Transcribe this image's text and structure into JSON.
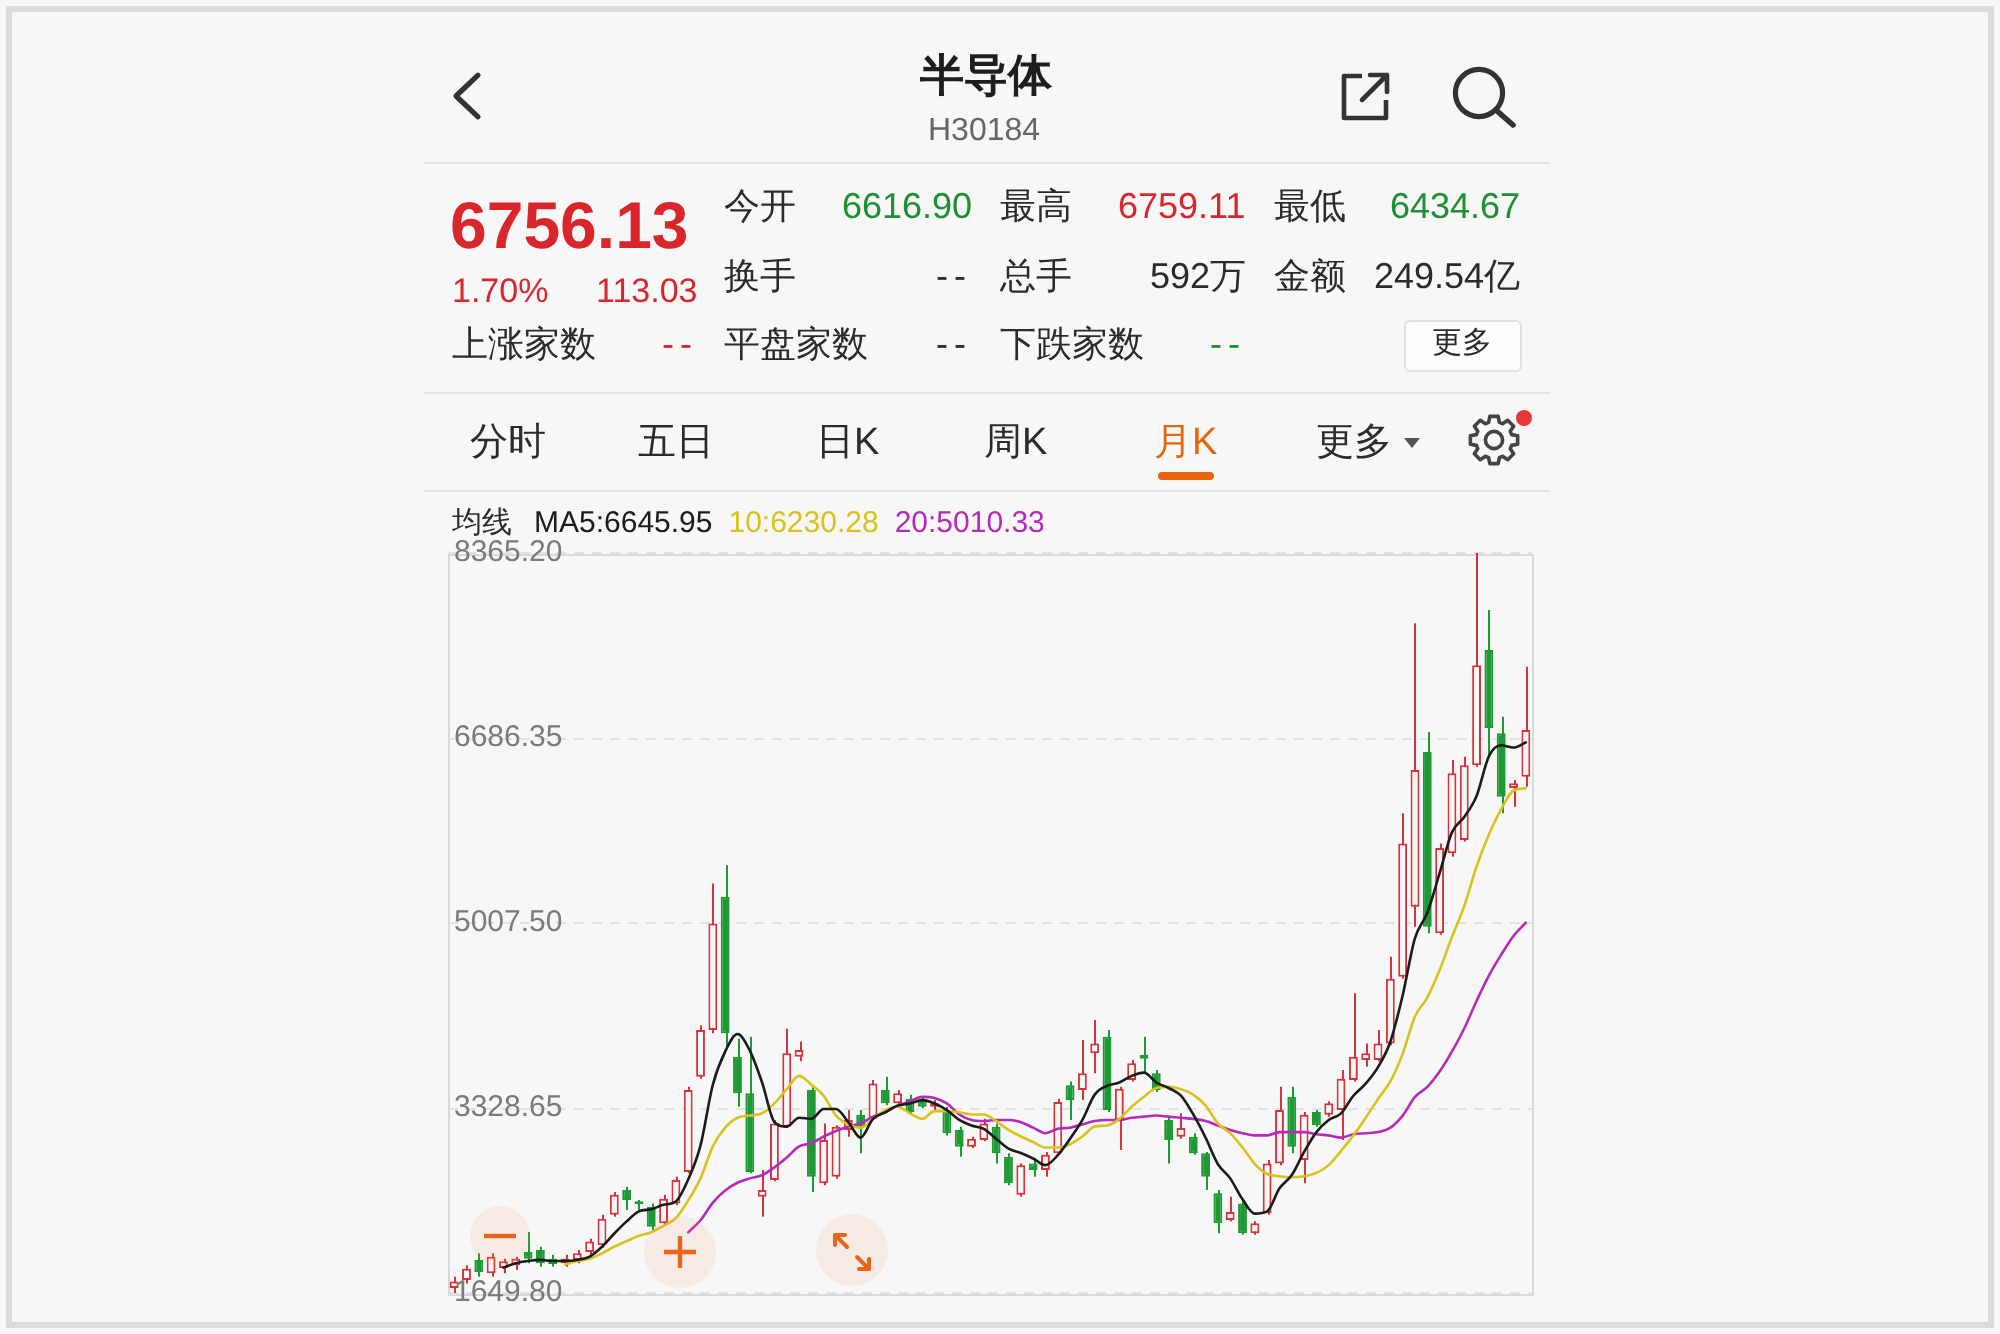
{
  "chart_data": {
    "type": "candlestick",
    "title": "半导体",
    "subtitle": "H30184",
    "categories": [
      null,
      null,
      null,
      null,
      null,
      null,
      null,
      null,
      null,
      null,
      null,
      null,
      null,
      null,
      null,
      null,
      null,
      null,
      null,
      null,
      null,
      null,
      null,
      null,
      null,
      null,
      null,
      null,
      null,
      null,
      null,
      null,
      null,
      null,
      null,
      null,
      null,
      null,
      null,
      null,
      null,
      null,
      null,
      null,
      null,
      null,
      null,
      null,
      null,
      null,
      null,
      null,
      null,
      null,
      null,
      null,
      null,
      null,
      null,
      null,
      null,
      null,
      null,
      null,
      null,
      null,
      null,
      null,
      null,
      null,
      null,
      null,
      null,
      null,
      null,
      null,
      null,
      null,
      null,
      null,
      null,
      null,
      null,
      null,
      null,
      null,
      null,
      null
    ],
    "ohlc": [
      [
        1695,
        1798,
        1650,
        1755
      ],
      [
        1767,
        1901,
        1737,
        1870
      ],
      [
        1949,
        2010,
        1798,
        1840
      ],
      [
        1828,
        2010,
        1798,
        1979
      ],
      [
        1876,
        1961,
        1828,
        1937
      ],
      [
        1901,
        1979,
        1858,
        1961
      ],
      [
        2022,
        2203,
        1919,
        1961
      ],
      [
        2040,
        2070,
        1889,
        1919
      ],
      [
        1961,
        1998,
        1889,
        1913
      ],
      [
        1919,
        1998,
        1889,
        1961
      ],
      [
        1949,
        2040,
        1919,
        2010
      ],
      [
        2022,
        2143,
        1998,
        2118
      ],
      [
        2082,
        2360,
        2058,
        2324
      ],
      [
        2360,
        2566,
        2342,
        2542
      ],
      [
        2584,
        2615,
        2403,
        2494
      ],
      [
        2482,
        2494,
        2403,
        2457
      ],
      [
        2433,
        2463,
        2221,
        2252
      ],
      [
        2282,
        2542,
        2264,
        2506
      ],
      [
        2463,
        2705,
        2445,
        2675
      ],
      [
        2748,
        3522,
        2736,
        3492
      ],
      [
        3613,
        4079,
        3595,
        4036
      ],
      [
        4036,
        5367,
        4006,
        5004
      ],
      [
        5246,
        5531,
        3885,
        4006
      ],
      [
        3794,
        3958,
        3341,
        3462
      ],
      [
        3462,
        3976,
        2736,
        2748
      ],
      [
        2524,
        2766,
        2342,
        2584
      ],
      [
        2675,
        3220,
        2663,
        3189
      ],
      [
        3159,
        4048,
        3147,
        3825
      ],
      [
        3794,
        3933,
        3752,
        3855
      ],
      [
        3492,
        3522,
        2566,
        2705
      ],
      [
        2645,
        3189,
        2627,
        3038
      ],
      [
        2705,
        3171,
        2687,
        3159
      ],
      [
        3129,
        3310,
        3068,
        3220
      ],
      [
        3268,
        3310,
        2917,
        3159
      ],
      [
        3232,
        3582,
        3220,
        3552
      ],
      [
        3492,
        3613,
        3353,
        3371
      ],
      [
        3371,
        3492,
        3341,
        3462
      ],
      [
        3413,
        3449,
        3280,
        3292
      ],
      [
        3401,
        3425,
        3328,
        3341
      ],
      [
        3341,
        3401,
        3304,
        3371
      ],
      [
        3310,
        3341,
        3080,
        3099
      ],
      [
        3129,
        3159,
        2887,
        2978
      ],
      [
        2978,
        3068,
        2966,
        3050
      ],
      [
        3038,
        3232,
        3026,
        3189
      ],
      [
        3159,
        3189,
        2826,
        2917
      ],
      [
        2887,
        2917,
        2627,
        2645
      ],
      [
        2542,
        2826,
        2524,
        2808
      ],
      [
        2826,
        2857,
        2705,
        2766
      ],
      [
        2766,
        2929,
        2705,
        2905
      ],
      [
        2917,
        3413,
        2905,
        3383
      ],
      [
        3534,
        3570,
        3220,
        3401
      ],
      [
        3492,
        3945,
        3401,
        3643
      ],
      [
        3825,
        4127,
        3643,
        3915
      ],
      [
        3976,
        4036,
        3292,
        3310
      ],
      [
        3220,
        3522,
        2947,
        3504
      ],
      [
        3582,
        3764,
        3570,
        3734
      ],
      [
        3812,
        3976,
        3643,
        3776
      ],
      [
        3643,
        3673,
        3474,
        3492
      ],
      [
        3220,
        3250,
        2826,
        3038
      ],
      [
        3068,
        3280,
        3050,
        3147
      ],
      [
        3068,
        3099,
        2905,
        2917
      ],
      [
        2917,
        2929,
        2584,
        2705
      ],
      [
        2554,
        2584,
        2191,
        2282
      ],
      [
        2312,
        2524,
        2300,
        2385
      ],
      [
        2463,
        2494,
        2179,
        2191
      ],
      [
        2191,
        2300,
        2179,
        2282
      ],
      [
        2373,
        2857,
        2360,
        2826
      ],
      [
        2826,
        3522,
        2808,
        3310
      ],
      [
        3431,
        3522,
        2917,
        2978
      ],
      [
        2857,
        3292,
        2645,
        3268
      ],
      [
        3292,
        3310,
        3159,
        3171
      ],
      [
        3268,
        3389,
        3250,
        3371
      ],
      [
        3310,
        3673,
        3038,
        3595
      ],
      [
        3582,
        4369,
        3570,
        3794
      ],
      [
        3764,
        3915,
        3703,
        3825
      ],
      [
        3764,
        4036,
        3752,
        3915
      ],
      [
        3915,
        4702,
        3897,
        4502
      ],
      [
        4520,
        6003,
        4502,
        5730
      ],
      [
        5156,
        7727,
        4974,
        6396
      ],
      [
        6559,
        6741,
        4914,
        4974
      ],
      [
        4914,
        5730,
        4902,
        5688
      ],
      [
        5640,
        6487,
        5609,
        6366
      ],
      [
        5761,
        6517,
        5748,
        6438
      ],
      [
        6438,
        8365,
        6426,
        7346
      ],
      [
        7485,
        7848,
        6517,
        6777
      ],
      [
        6729,
        6880,
        6003,
        6154
      ],
      [
        6232,
        6305,
        6063,
        6275
      ],
      [
        6335,
        7334,
        6245,
        6759
      ]
    ],
    "colors": [
      "#d7333b",
      "#d7333b",
      "#1e9a35",
      "#d7333b",
      "#d7333b",
      "#d7333b",
      "#1e9a35",
      "#1e9a35",
      "#1e9a35",
      "#d7333b",
      "#d7333b",
      "#d7333b",
      "#d7333b",
      "#d7333b",
      "#1e9a35",
      "#1e9a35",
      "#1e9a35",
      "#d7333b",
      "#d7333b",
      "#d7333b",
      "#d7333b",
      "#d7333b",
      "#1e9a35",
      "#1e9a35",
      "#1e9a35",
      "#d7333b",
      "#d7333b",
      "#d7333b",
      "#d7333b",
      "#1e9a35",
      "#d7333b",
      "#d7333b",
      "#d7333b",
      "#1e9a35",
      "#d7333b",
      "#1e9a35",
      "#d7333b",
      "#1e9a35",
      "#1e9a35",
      "#d7333b",
      "#1e9a35",
      "#1e9a35",
      "#d7333b",
      "#d7333b",
      "#1e9a35",
      "#1e9a35",
      "#d7333b",
      "#1e9a35",
      "#d7333b",
      "#d7333b",
      "#1e9a35",
      "#d7333b",
      "#d7333b",
      "#1e9a35",
      "#d7333b",
      "#d7333b",
      "#1e9a35",
      "#1e9a35",
      "#1e9a35",
      "#d7333b",
      "#1e9a35",
      "#1e9a35",
      "#1e9a35",
      "#d7333b",
      "#1e9a35",
      "#d7333b",
      "#d7333b",
      "#d7333b",
      "#1e9a35",
      "#d7333b",
      "#1e9a35",
      "#d7333b",
      "#d7333b",
      "#d7333b",
      "#d7333b",
      "#d7333b",
      "#d7333b",
      "#d7333b",
      "#d7333b",
      "#1e9a35",
      "#d7333b",
      "#d7333b",
      "#d7333b",
      "#d7333b",
      "#1e9a35",
      "#1e9a35",
      "#d7333b",
      "#d7333b"
    ],
    "series": [
      {
        "name": "MA5:6645.95",
        "type": "line",
        "color": "#1b1b1b",
        "values": [
          null,
          null,
          null,
          null,
          1880,
          1920,
          1940,
          1950,
          1940,
          1940,
          1950,
          1980,
          2070,
          2190,
          2300,
          2390,
          2410,
          2450,
          2480,
          2680,
          2990,
          3540,
          3840,
          4000,
          3850,
          3560,
          3200,
          3160,
          3240,
          3230,
          3320,
          3320,
          3200,
          3060,
          3230,
          3290,
          3350,
          3370,
          3400,
          3370,
          3310,
          3220,
          3170,
          3140,
          3050,
          2960,
          2920,
          2870,
          2810,
          2900,
          3050,
          3220,
          3450,
          3530,
          3560,
          3620,
          3650,
          3560,
          3510,
          3440,
          3270,
          3060,
          2820,
          2690,
          2500,
          2370,
          2390,
          2600,
          2720,
          2930,
          3110,
          3220,
          3280,
          3440,
          3550,
          3700,
          3930,
          4350,
          4870,
          5100,
          5460,
          5830,
          5970,
          6160,
          6520,
          6620,
          6600,
          6645.95
        ]
      },
      {
        "name": "10:6230.28",
        "type": "line",
        "color": "#d9c21c",
        "values": [
          null,
          null,
          null,
          null,
          null,
          null,
          null,
          null,
          null,
          1910,
          1940,
          1960,
          2010,
          2070,
          2120,
          2170,
          2200,
          2260,
          2330,
          2490,
          2690,
          2980,
          3150,
          3240,
          3260,
          3280,
          3370,
          3500,
          3620,
          3540,
          3440,
          3260,
          3180,
          3150,
          3230,
          3310,
          3340,
          3280,
          3230,
          3300,
          3300,
          3290,
          3270,
          3270,
          3210,
          3130,
          3070,
          3020,
          2970,
          2970,
          3000,
          3070,
          3160,
          3170,
          3230,
          3340,
          3430,
          3510,
          3520,
          3500,
          3450,
          3350,
          3190,
          3100,
          2970,
          2820,
          2730,
          2710,
          2700,
          2710,
          2740,
          2810,
          2940,
          3080,
          3240,
          3410,
          3570,
          3820,
          4160,
          4330,
          4580,
          4880,
          5160,
          5520,
          5810,
          6040,
          6210,
          6230.28
        ]
      },
      {
        "name": "20:5010.33",
        "type": "line",
        "color": "#b52ab8",
        "values": [
          null,
          null,
          null,
          null,
          null,
          null,
          null,
          null,
          null,
          null,
          null,
          null,
          null,
          null,
          null,
          null,
          null,
          null,
          null,
          2200,
          2310,
          2470,
          2580,
          2650,
          2690,
          2720,
          2790,
          2880,
          2980,
          3010,
          3070,
          3120,
          3160,
          3190,
          3250,
          3290,
          3350,
          3390,
          3430,
          3420,
          3370,
          3270,
          3220,
          3210,
          3220,
          3220,
          3200,
          3150,
          3100,
          3140,
          3150,
          3180,
          3210,
          3220,
          3220,
          3240,
          3250,
          3260,
          3250,
          3240,
          3230,
          3210,
          3170,
          3130,
          3100,
          3080,
          3080,
          3110,
          3110,
          3110,
          3090,
          3080,
          3060,
          3090,
          3100,
          3110,
          3150,
          3260,
          3430,
          3520,
          3660,
          3840,
          4050,
          4300,
          4530,
          4720,
          4890,
          5010.33
        ]
      }
    ],
    "legend_title": "均线",
    "legend": "top left",
    "ylim": [
      1649.8,
      8365.2
    ],
    "yticks": [
      {
        "value": 1649.8,
        "label": "1649.80"
      },
      {
        "value": 3328.65,
        "label": "3328.65"
      },
      {
        "value": 5007.5,
        "label": "5007.50"
      },
      {
        "value": 6686.35,
        "label": "6686.35"
      },
      {
        "value": 8365.2,
        "label": "8365.20"
      }
    ],
    "grid": "y",
    "tick_labels": "y",
    "annotations": [
      "6756.13",
      "1.70%",
      "113.03",
      "今开",
      "6616.90",
      "最高",
      "6759.11",
      "最低",
      "6434.67",
      "换手",
      "--",
      "总手",
      "592万",
      "金额",
      "249.54亿",
      "上涨家数",
      "--",
      "平盘家数",
      "--",
      "下跌家数",
      "--",
      "更多",
      "分时",
      "五日",
      "日K",
      "周K",
      "月K",
      "更多"
    ]
  }
}
